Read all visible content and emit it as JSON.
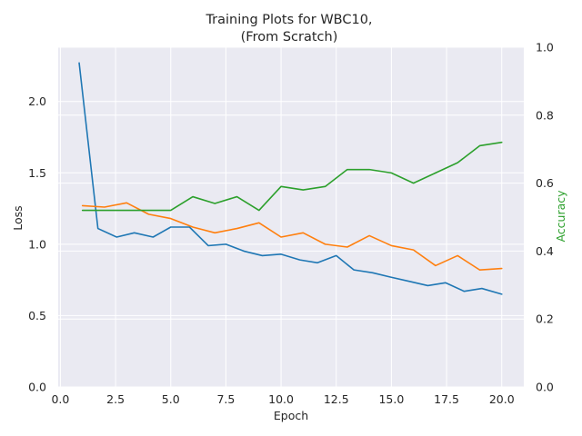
{
  "chart_data": {
    "type": "line",
    "title_line1": "Training Plots for WBC10,",
    "title_line2": "(From Scratch)",
    "xlabel": "Epoch",
    "ylabel_left": "Loss",
    "ylabel_right": "Accuracy",
    "xlim": [
      -0.1,
      21.0
    ],
    "ylim_left": [
      0.0,
      2.38
    ],
    "ylim_right": [
      0.0,
      1.0
    ],
    "x_ticks": [
      0.0,
      2.5,
      5.0,
      7.5,
      10.0,
      12.5,
      15.0,
      17.5,
      20.0
    ],
    "x_tick_labels": [
      "0.0",
      "2.5",
      "5.0",
      "7.5",
      "10.0",
      "12.5",
      "15.0",
      "17.5",
      "20.0"
    ],
    "left_ticks": [
      0.0,
      0.5,
      1.0,
      1.5,
      2.0
    ],
    "left_tick_labels": [
      "0.0",
      "0.5",
      "1.0",
      "1.5",
      "2.0"
    ],
    "right_ticks": [
      0.0,
      0.2,
      0.4,
      0.6,
      0.8,
      1.0
    ],
    "right_tick_labels": [
      "0.0",
      "0.2",
      "0.4",
      "0.6",
      "0.8",
      "1.0"
    ],
    "grid": true,
    "background": "#eaeaf2",
    "series": [
      {
        "axis": "left",
        "color": "#1f77b4",
        "x": [
          0.85,
          1.7,
          2.55,
          3.35,
          4.2,
          5.0,
          5.85,
          6.7,
          7.5,
          8.35,
          9.15,
          10.0,
          10.85,
          11.65,
          12.5,
          13.3,
          14.15,
          14.95,
          15.8,
          16.65,
          17.45,
          18.3,
          19.1,
          20.0
        ],
        "values": [
          2.27,
          1.11,
          1.05,
          1.08,
          1.05,
          1.12,
          1.12,
          0.99,
          1.0,
          0.95,
          0.92,
          0.93,
          0.89,
          0.87,
          0.92,
          0.82,
          0.8,
          0.77,
          0.74,
          0.71,
          0.73,
          0.67,
          0.69,
          0.65
        ]
      },
      {
        "axis": "left",
        "color": "#ff7f0e",
        "x": [
          1.0,
          2.0,
          3.0,
          4.0,
          5.0,
          6.0,
          7.0,
          8.0,
          9.0,
          10.0,
          11.0,
          12.0,
          13.0,
          14.0,
          15.0,
          16.0,
          17.0,
          18.0,
          19.0,
          20.0
        ],
        "values": [
          1.27,
          1.26,
          1.29,
          1.21,
          1.18,
          1.12,
          1.08,
          1.11,
          1.15,
          1.05,
          1.08,
          1.0,
          0.98,
          1.06,
          0.99,
          0.96,
          0.85,
          0.92,
          0.82,
          0.83
        ]
      },
      {
        "axis": "right",
        "color": "#2ca02c",
        "x": [
          1.0,
          2.0,
          3.0,
          4.0,
          5.0,
          6.0,
          7.0,
          8.0,
          9.0,
          10.0,
          11.0,
          12.0,
          13.0,
          14.0,
          15.0,
          16.0,
          17.0,
          18.0,
          19.0,
          20.0
        ],
        "values": [
          0.52,
          0.52,
          0.52,
          0.52,
          0.52,
          0.56,
          0.54,
          0.56,
          0.52,
          0.59,
          0.58,
          0.59,
          0.64,
          0.64,
          0.63,
          0.6,
          0.63,
          0.66,
          0.71,
          0.72
        ]
      }
    ]
  }
}
